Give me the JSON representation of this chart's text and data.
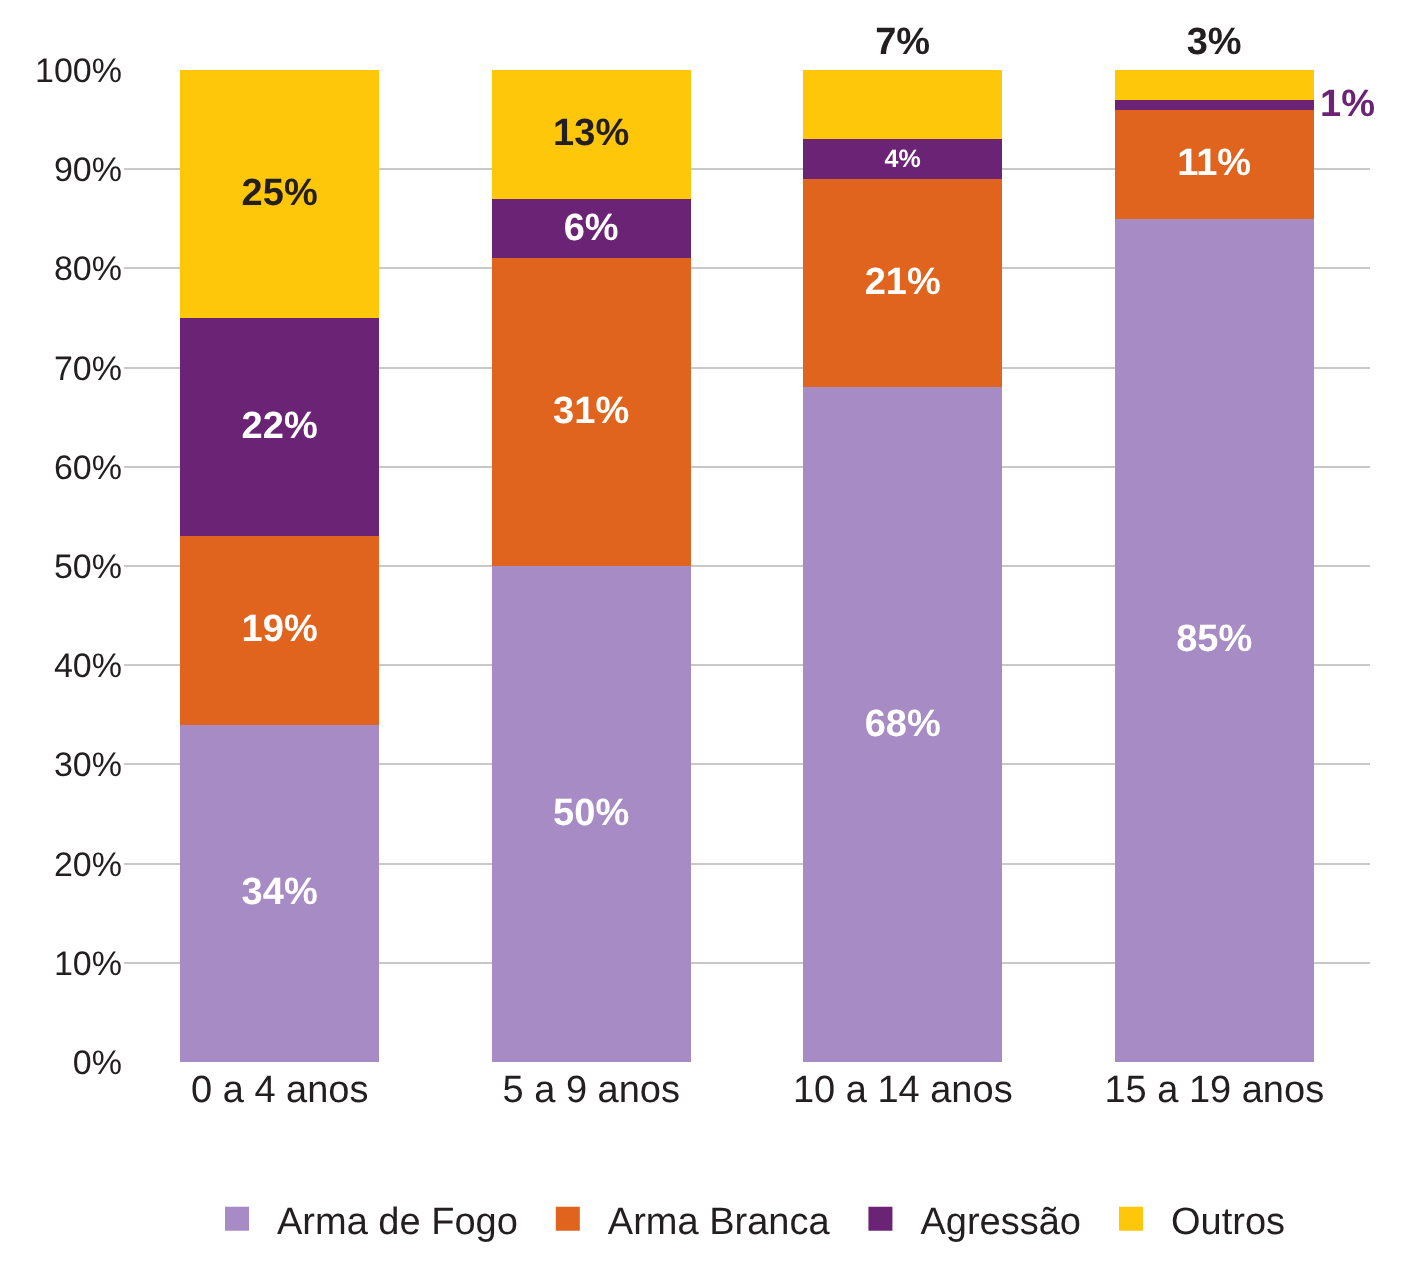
{
  "chart_data": {
    "type": "bar",
    "stacked": true,
    "categories": [
      "0 a 4 anos",
      "5 a 9 anos",
      "10 a 14 anos",
      "15 a 19 anos"
    ],
    "series": [
      {
        "name": "Arma de Fogo",
        "color": "#a78bc4",
        "values": [
          34,
          50,
          68,
          85
        ],
        "value_labels": [
          "34%",
          "50%",
          "68%",
          "85%"
        ]
      },
      {
        "name": "Arma Branca",
        "color": "#e0641e",
        "values": [
          19,
          31,
          21,
          11
        ],
        "value_labels": [
          "19%",
          "31%",
          "21%",
          "11%"
        ]
      },
      {
        "name": "Agressão",
        "color": "#6b2475",
        "values": [
          22,
          6,
          4,
          1
        ],
        "value_labels": [
          "22%",
          "6%",
          "4%",
          "1%"
        ]
      },
      {
        "name": "Outros",
        "color": "#fec709",
        "values": [
          25,
          13,
          7,
          3
        ],
        "value_labels": [
          "25%",
          "13%",
          "7%",
          "3%"
        ]
      }
    ],
    "ylim": [
      0,
      100
    ],
    "yticks": [
      {
        "value": 0,
        "label": "0%"
      },
      {
        "value": 10,
        "label": "10%"
      },
      {
        "value": 20,
        "label": "20%"
      },
      {
        "value": 30,
        "label": "30%"
      },
      {
        "value": 40,
        "label": "40%"
      },
      {
        "value": 50,
        "label": "50%"
      },
      {
        "value": 60,
        "label": "60%"
      },
      {
        "value": 70,
        "label": "70%"
      },
      {
        "value": 80,
        "label": "80%"
      },
      {
        "value": 90,
        "label": "90%"
      },
      {
        "value": 100,
        "label": "100%"
      }
    ],
    "grid": "y",
    "legend": "bottom"
  }
}
